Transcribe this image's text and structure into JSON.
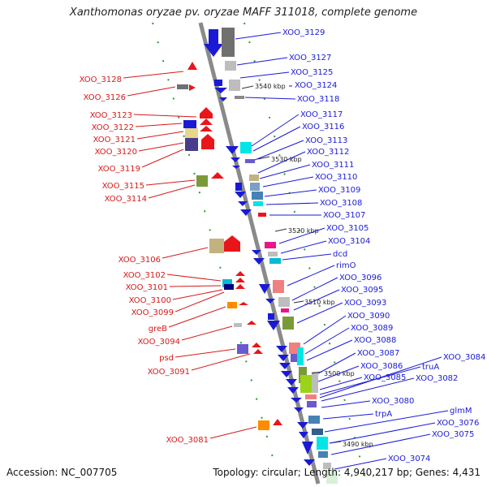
{
  "title": "Xanthomonas oryzae pv. oryzae MAFF 311018, complete genome",
  "accession_text": "Accession: NC_007705",
  "topology_text": "Topology: circular; Length: 4,940,217 bp; Genes: 4,431",
  "kbp_markers": [
    "3540 kbp",
    "3530 kbp",
    "3520 kbp",
    "3510 kbp",
    "3500 kbp",
    "3490 kbp"
  ],
  "right_labels": [
    "XOO_3129",
    "XOO_3127",
    "XOO_3125",
    "XOO_3124",
    "XOO_3118",
    "XOO_3117",
    "XOO_3116",
    "XOO_3113",
    "XOO_3112",
    "XOO_3111",
    "XOO_3110",
    "XOO_3109",
    "XOO_3108",
    "XOO_3107",
    "XOO_3105",
    "XOO_3104",
    "dcd",
    "rimO",
    "XOO_3096",
    "XOO_3095",
    "XOO_3093",
    "XOO_3090",
    "XOO_3089",
    "XOO_3088",
    "XOO_3087",
    "XOO_3086",
    "XOO_3085",
    "truA",
    "XOO_3084",
    "XOO_3082",
    "XOO_3080",
    "trpA",
    "glmM",
    "XOO_3076",
    "XOO_3075",
    "XOO_3074"
  ],
  "left_labels": [
    "XOO_3128",
    "XOO_3126",
    "XOO_3123",
    "XOO_3122",
    "XOO_3121",
    "XOO_3120",
    "XOO_3119",
    "XOO_3115",
    "XOO_3114",
    "XOO_3106",
    "XOO_3102",
    "XOO_3101",
    "XOO_3100",
    "XOO_3099",
    "greB",
    "XOO_3094",
    "psd",
    "XOO_3091",
    "XOO_3081"
  ],
  "colors": {
    "forward_strand_genes": "#e8161a",
    "reverse_strand_genes": "#1a1ad6",
    "backbone": "#8a8a8a",
    "guide_dots": "#2e9e2e"
  }
}
